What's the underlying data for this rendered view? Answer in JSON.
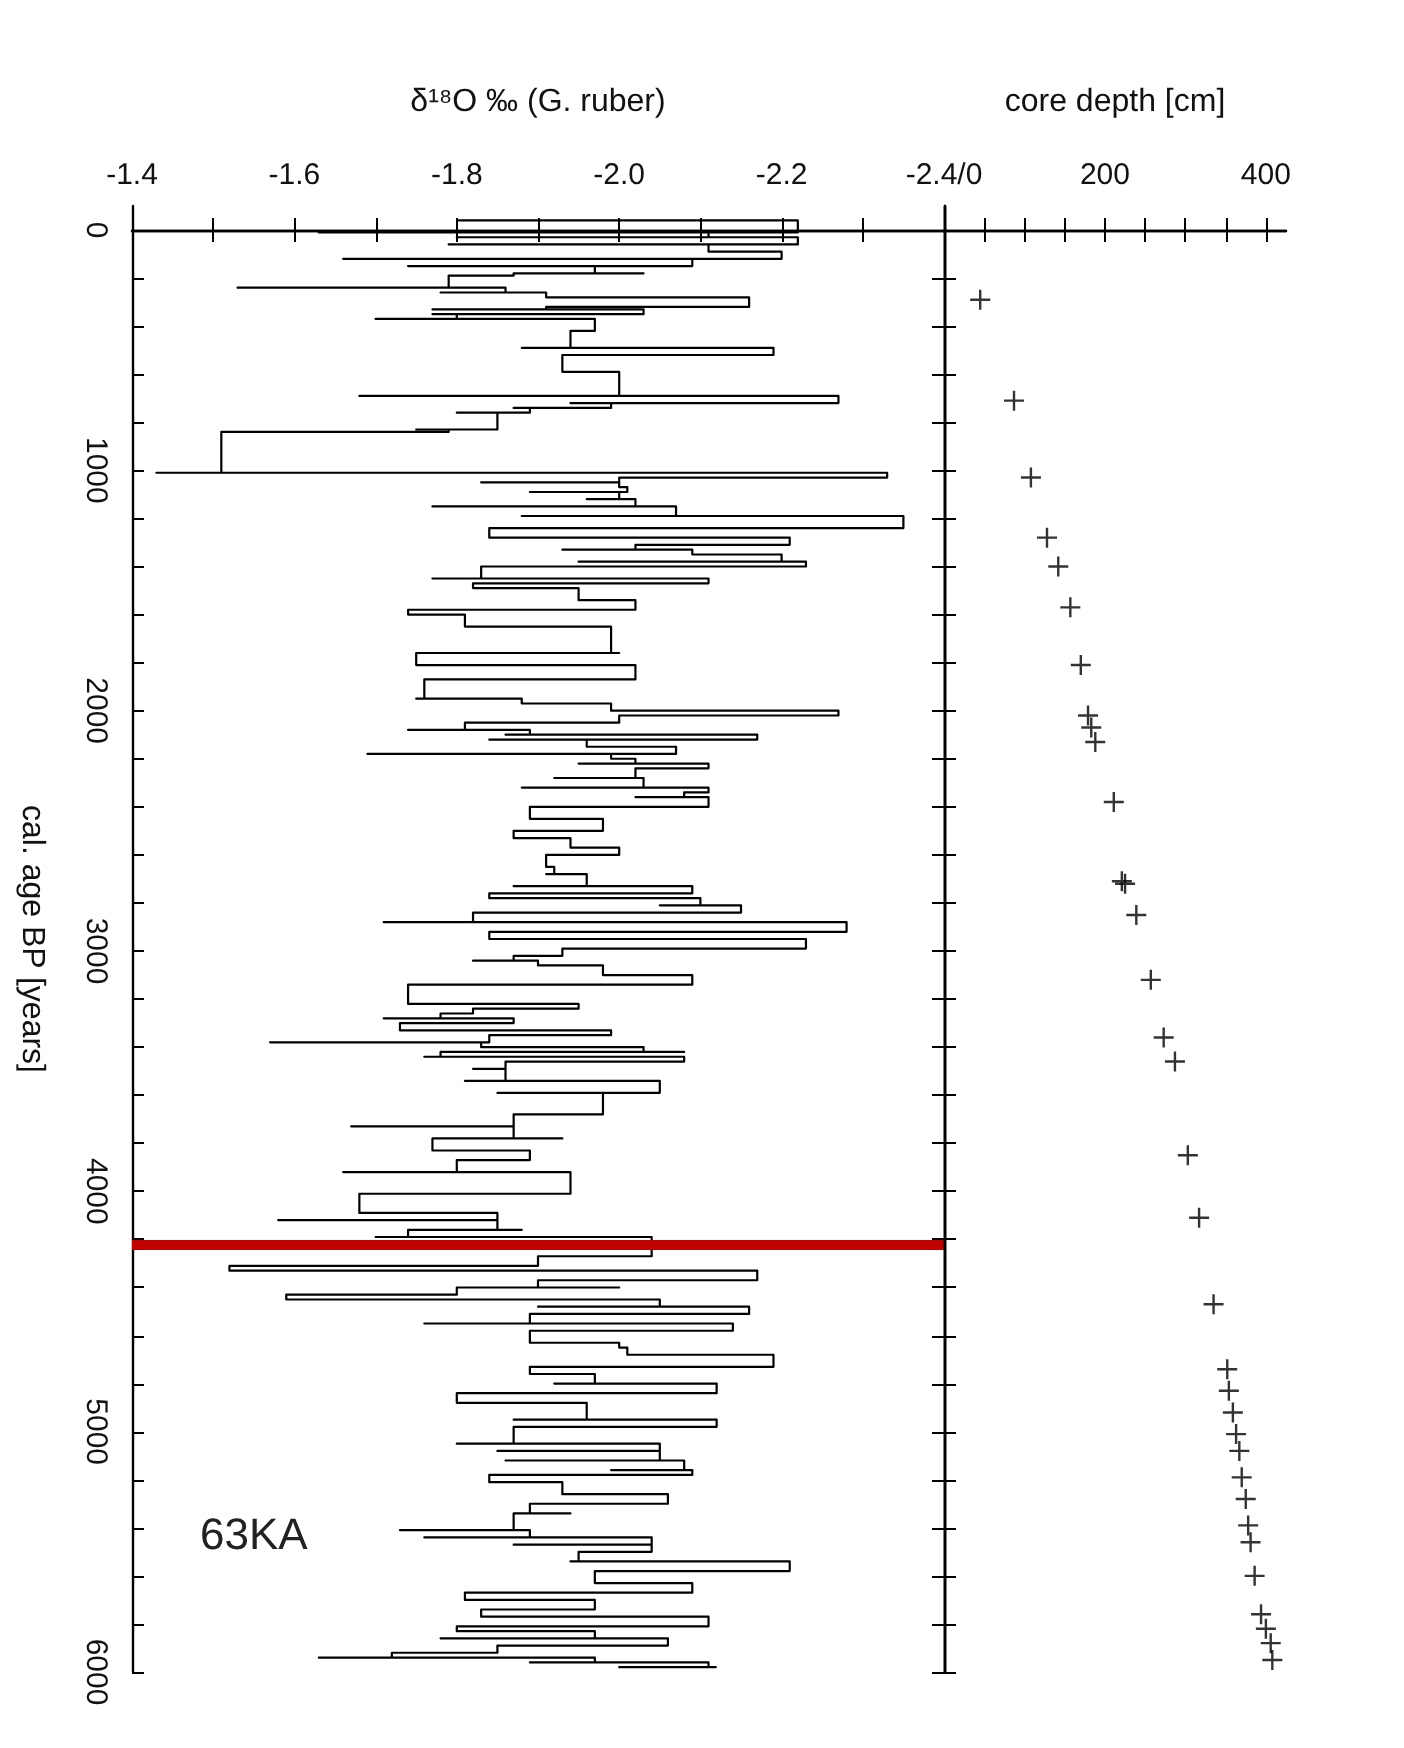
{
  "chart_data": [
    {
      "type": "step",
      "xlabel": "δ¹⁸O ‰ (G. ruber)",
      "ylabel": "cal. age BP [years]",
      "xlim": [
        -1.4,
        -2.4
      ],
      "xticks": [
        -1.4,
        {
          "value": -1.5,
          "label": null
        },
        -1.6,
        {
          "value": -1.7,
          "label": null
        },
        -1.8,
        {
          "value": -1.9,
          "label": null
        },
        {
          "value": -2,
          "label": "-2.0"
        },
        {
          "value": -2.1,
          "label": null
        },
        -2.2,
        {
          "value": -2.3,
          "label": null
        },
        {
          "value": -2.4,
          "label": "-2.4/0"
        }
      ],
      "ylim": [
        6000,
        -100
      ],
      "yticks": [
        0,
        {
          "value": 200,
          "label": null
        },
        {
          "value": 400,
          "label": null
        },
        {
          "value": 600,
          "label": null
        },
        {
          "value": 800,
          "label": null
        },
        1000,
        {
          "value": 1200,
          "label": null
        },
        {
          "value": 1400,
          "label": null
        },
        {
          "value": 1600,
          "label": null
        },
        {
          "value": 1800,
          "label": null
        },
        2000,
        {
          "value": 2200,
          "label": null
        },
        {
          "value": 2400,
          "label": null
        },
        {
          "value": 2600,
          "label": null
        },
        {
          "value": 2800,
          "label": null
        },
        3000,
        {
          "value": 3200,
          "label": null
        },
        {
          "value": 3400,
          "label": null
        },
        {
          "value": 3600,
          "label": null
        },
        {
          "value": 3800,
          "label": null
        },
        4000,
        {
          "value": 4200,
          "label": null
        },
        {
          "value": 4400,
          "label": null
        },
        {
          "value": 4600,
          "label": null
        },
        {
          "value": 4800,
          "label": null
        },
        5000,
        {
          "value": 5200,
          "label": null
        },
        {
          "value": 5400,
          "label": null
        },
        {
          "value": 5600,
          "label": null
        },
        {
          "value": 5800,
          "label": null
        },
        6000
      ],
      "annotations": [
        "63KA"
      ],
      "ref_lines": [
        {
          "axis": "y",
          "value": 4220,
          "label": null,
          "color": "#c00000"
        }
      ],
      "series": [
        {
          "color": "#000000",
          "x": [
            -1.8,
            -2.22,
            -1.63,
            -2.11,
            -1.8,
            -2.22,
            -1.79,
            -2.11,
            -2.2,
            -1.66,
            -2.09,
            -1.74,
            -1.97,
            -2.03,
            -1.87,
            -1.79,
            -1.53,
            -1.86,
            -1.78,
            -1.91,
            -2.16,
            -2.07,
            -1.91,
            -1.77,
            -2.03,
            -1.77,
            -1.8,
            -1.7,
            -1.97,
            -1.94,
            -1.88,
            -2.19,
            -2.06,
            -1.93,
            -2.0,
            -1.68,
            -2.27,
            -1.94,
            -1.99,
            -1.87,
            -1.89,
            -1.8,
            -1.85,
            -1.75,
            -1.79,
            -1.51,
            -1.43,
            -2.33,
            -2.02,
            -2.0,
            -1.83,
            -2.0,
            -2.01,
            -1.89,
            -2.0,
            -1.96,
            -2.02,
            -1.77,
            -2.07,
            -1.88,
            -2.35,
            -2.24,
            -1.84,
            -1.99,
            -2.21,
            -2.07,
            -2.02,
            -1.93,
            -2.09,
            -2.11,
            -2.2,
            -1.95,
            -2.23,
            -2.0,
            -1.83,
            -1.77,
            -2.11,
            -1.82,
            -1.83,
            -1.95,
            -2.02,
            -2.0,
            -1.74,
            -1.81,
            -1.99,
            -2.0,
            -1.75,
            -2.02,
            -1.76,
            -1.75,
            -1.88,
            -1.99,
            -2.27,
            -2.05,
            -2.0,
            -1.81,
            -1.74,
            -1.89,
            -1.86,
            -2.17,
            -1.84,
            -1.96,
            -2.07,
            -1.69,
            -1.99,
            -2.02,
            -1.95,
            -2.11,
            -2.02,
            -1.92,
            -2.03,
            -1.88,
            -2.11,
            -2.08,
            -2.02,
            -2.11,
            -1.98,
            -1.89,
            -1.92,
            -1.98,
            -1.92,
            -1.87,
            -1.94,
            -2.0,
            -1.91,
            -1.92,
            -1.91,
            -1.96,
            -1.87,
            -2.09,
            -2.02,
            -1.84,
            -1.96,
            -2.1,
            -2.05,
            -2.15,
            -2.15,
            -1.82,
            -1.71,
            -2.28,
            -2.22,
            -1.84,
            -1.92,
            -2.23,
            -2.04,
            -1.93,
            -1.87,
            -1.82,
            -1.9,
            -1.92,
            -1.98,
            -2.09,
            -2.04,
            -1.74,
            -1.85,
            -1.95,
            -1.82,
            -1.78,
            -1.71,
            -1.87,
            -1.87,
            -1.73,
            -1.85,
            -1.99,
            -1.84,
            -1.57,
            -1.83,
            -1.87,
            -2.03,
            -2.08,
            -1.78,
            -1.76,
            -2.08,
            -2.0,
            -1.86,
            -1.82,
            -1.86,
            -1.81,
            -2.05,
            -1.85,
            -1.98,
            -1.87,
            -1.67,
            -1.87,
            -1.93,
            -1.77,
            -1.82,
            -1.89,
            -1.89,
            -1.8,
            -1.66,
            -1.94,
            -1.89,
            -1.68,
            -1.68,
            -1.85,
            -1.58,
            -1.85,
            -1.88,
            -1.74,
            -1.7,
            -2.04,
            -1.98,
            -1.9,
            -1.88,
            -1.52,
            -1.86,
            -2.17,
            -2.04,
            -1.9,
            -2.0,
            -1.8,
            -1.8,
            -1.59,
            -1.9,
            -2.05,
            -1.9,
            -2.16,
            -2.14,
            -1.89,
            -1.76,
            -2.14,
            -2.0,
            -1.89,
            -1.92,
            -2.0,
            -2.01,
            -2.19,
            -2.02,
            -1.89,
            -1.95,
            -1.97,
            -1.92,
            -2.12,
            -1.92,
            -1.8,
            -1.91,
            -1.96,
            -1.87,
            -2.12,
            -2.11,
            -1.87,
            -1.8,
            -2.05,
            -1.85,
            -2.05,
            -1.86,
            -2.08,
            -1.99,
            -2.09,
            -2.09,
            -1.84,
            -1.85,
            -1.93,
            -1.93,
            -2.06,
            -2.05,
            -1.89,
            -1.94,
            -1.87,
            -1.73,
            -1.89,
            -1.76,
            -2.04,
            -1.87,
            -2.04,
            -2.04,
            -1.95,
            -1.94,
            -2.21,
            -2.09,
            -1.97,
            -1.98,
            -2.09,
            -1.98,
            -1.81,
            -1.89,
            -1.97,
            -1.89,
            -1.83,
            -1.83,
            -2.11,
            -1.97,
            -1.8,
            -1.84,
            -1.97,
            -1.78,
            -2.06,
            -2.02,
            -1.85,
            -1.85,
            -1.72,
            -1.63,
            -1.97,
            -1.89,
            -2.11,
            -2.0,
            -2.12
          ],
          "values": [
            -40,
            -40,
            10,
            10,
            30,
            30,
            60,
            60,
            90,
            120,
            120,
            150,
            150,
            180,
            180,
            190,
            240,
            240,
            260,
            260,
            280,
            320,
            320,
            330,
            330,
            350,
            350,
            370,
            370,
            420,
            490,
            490,
            520,
            520,
            590,
            690,
            690,
            720,
            720,
            740,
            740,
            760,
            760,
            830,
            830,
            840,
            1010,
            1010,
            1030,
            1030,
            1050,
            1050,
            1070,
            1090,
            1090,
            1120,
            1120,
            1150,
            1150,
            1190,
            1190,
            1240,
            1240,
            1280,
            1280,
            1310,
            1310,
            1330,
            1330,
            1350,
            1350,
            1380,
            1380,
            1400,
            1400,
            1450,
            1450,
            1470,
            1490,
            1490,
            1540,
            1580,
            1580,
            1600,
            1650,
            1760,
            1760,
            1810,
            1870,
            1950,
            1950,
            1970,
            2000,
            2020,
            2020,
            2050,
            2080,
            2080,
            2100,
            2100,
            2120,
            2120,
            2150,
            2180,
            2180,
            2200,
            2220,
            2220,
            2240,
            2280,
            2280,
            2320,
            2320,
            2340,
            2360,
            2360,
            2400,
            2400,
            2450,
            2450,
            2500,
            2500,
            2530,
            2570,
            2600,
            2650,
            2680,
            2680,
            2730,
            2730,
            2760,
            2760,
            2780,
            2780,
            2810,
            2810,
            2840,
            2840,
            2880,
            2880,
            2920,
            2920,
            2950,
            2950,
            2990,
            2990,
            3020,
            3040,
            3040,
            3060,
            3060,
            3100,
            3140,
            3140,
            3220,
            3220,
            3240,
            3260,
            3280,
            3280,
            3300,
            3300,
            3330,
            3330,
            3350,
            3380,
            3380,
            3400,
            3400,
            3420,
            3420,
            3440,
            3440,
            3460,
            3460,
            3490,
            3490,
            3540,
            3540,
            3590,
            3590,
            3680,
            3730,
            3730,
            3780,
            3780,
            3830,
            3830,
            3870,
            3870,
            3920,
            3920,
            4010,
            4010,
            4090,
            4090,
            4120,
            4120,
            4160,
            4160,
            4190,
            4190,
            4270,
            4270,
            4310,
            4310,
            4330,
            4330,
            4370,
            4370,
            4400,
            4400,
            4430,
            4430,
            4450,
            4450,
            4480,
            4480,
            4510,
            4510,
            4550,
            4550,
            4580,
            4580,
            4630,
            4630,
            4650,
            4680,
            4730,
            4730,
            4760,
            4760,
            4800,
            4800,
            4840,
            4840,
            4880,
            4880,
            4950,
            4950,
            4980,
            4980,
            5050,
            5050,
            5080,
            5080,
            5120,
            5120,
            5160,
            5160,
            5180,
            5180,
            5210,
            5210,
            5260,
            5260,
            5300,
            5300,
            5340,
            5340,
            5410,
            5410,
            5440,
            5440,
            5470,
            5470,
            5500,
            5500,
            5540,
            5540,
            5580,
            5580,
            5630,
            5630,
            5670,
            5670,
            5700,
            5700,
            5740,
            5740,
            5770,
            5770,
            5810,
            5810,
            5830,
            5830,
            5860,
            5860,
            5890,
            5890,
            5920,
            5920,
            5940,
            5940,
            5960,
            5960,
            5980,
            5980
          ]
        }
      ]
    },
    {
      "type": "scatter",
      "marker": "cross",
      "tick_labels": "x",
      "xlabel": "core depth [cm]",
      "xlim": [
        0,
        425
      ],
      "xticks": [
        {
          "value": 0,
          "label": null
        },
        {
          "value": 50,
          "label": null
        },
        {
          "value": 100,
          "label": null
        },
        {
          "value": 150,
          "label": null
        },
        200,
        {
          "value": 250,
          "label": null
        },
        {
          "value": 300,
          "label": null
        },
        {
          "value": 350,
          "label": null
        },
        400
      ],
      "ylim": [
        6000,
        -100
      ],
      "yticks": [
        0,
        {
          "value": 200,
          "label": null
        },
        {
          "value": 400,
          "label": null
        },
        {
          "value": 600,
          "label": null
        },
        {
          "value": 800,
          "label": null
        },
        1000,
        {
          "value": 1200,
          "label": null
        },
        {
          "value": 1400,
          "label": null
        },
        {
          "value": 1600,
          "label": null
        },
        {
          "value": 1800,
          "label": null
        },
        2000,
        {
          "value": 2200,
          "label": null
        },
        {
          "value": 2400,
          "label": null
        },
        {
          "value": 2600,
          "label": null
        },
        {
          "value": 2800,
          "label": null
        },
        3000,
        {
          "value": 3200,
          "label": null
        },
        {
          "value": 3400,
          "label": null
        },
        {
          "value": 3600,
          "label": null
        },
        {
          "value": 3800,
          "label": null
        },
        4000,
        {
          "value": 4200,
          "label": null
        },
        {
          "value": 4400,
          "label": null
        },
        {
          "value": 4600,
          "label": null
        },
        {
          "value": 4800,
          "label": null
        },
        5000,
        {
          "value": 5200,
          "label": null
        },
        {
          "value": 5400,
          "label": null
        },
        {
          "value": 5600,
          "label": null
        },
        {
          "value": 5800,
          "label": null
        },
        6000
      ],
      "series": [
        {
          "color": "#000000",
          "x": [
            45,
            87,
            108,
            128,
            142,
            157,
            170,
            179,
            183,
            188,
            211,
            221,
            225,
            239,
            257,
            273,
            287,
            303,
            317,
            335,
            352,
            354,
            359,
            363,
            367,
            370,
            375,
            378,
            381,
            386,
            394,
            400,
            406,
            408
          ],
          "values": [
            290,
            710,
            1030,
            1280,
            1400,
            1570,
            1810,
            2020,
            2070,
            2130,
            2380,
            2710,
            2720,
            2850,
            3120,
            3360,
            3460,
            3850,
            4110,
            4470,
            4740,
            4830,
            4920,
            5010,
            5080,
            5190,
            5280,
            5390,
            5460,
            5600,
            5760,
            5820,
            5880,
            5950
          ]
        }
      ]
    }
  ]
}
